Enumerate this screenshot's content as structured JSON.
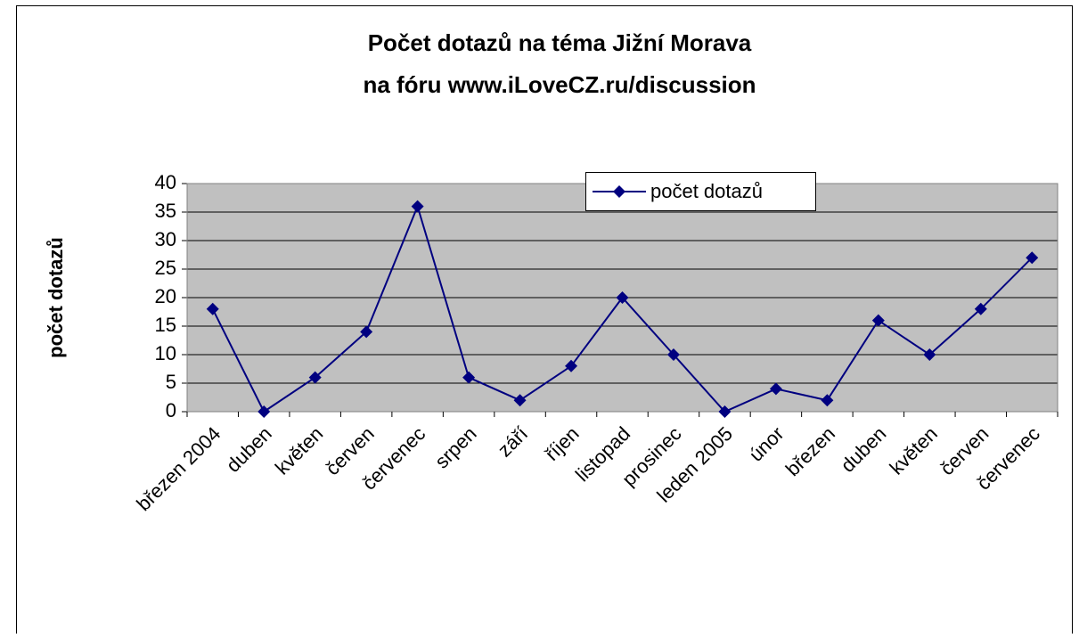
{
  "chart_data": {
    "type": "line",
    "title": [
      "Počet dotazů na téma Jižní Morava",
      "na fóru www.iLoveCZ.ru/discussion"
    ],
    "y_label": "počet dotazů",
    "categories": [
      "březen 2004",
      "duben",
      "květen",
      "červen",
      "červenec",
      "srpen",
      "září",
      "říjen",
      "listopad",
      "prosinec",
      "leden 2005",
      "únor",
      "březen",
      "duben",
      "květen",
      "červen",
      "červenec"
    ],
    "series": [
      {
        "name": "počet dotazů",
        "color": "#000080",
        "values": [
          18,
          0,
          6,
          14,
          36,
          6,
          2,
          8,
          20,
          10,
          0,
          4,
          2,
          16,
          10,
          18,
          27
        ]
      }
    ],
    "ylim": [
      0,
      40
    ],
    "yticks": [
      0,
      5,
      10,
      15,
      20,
      25,
      30,
      35,
      40
    ],
    "grid": true,
    "legend": "top"
  }
}
